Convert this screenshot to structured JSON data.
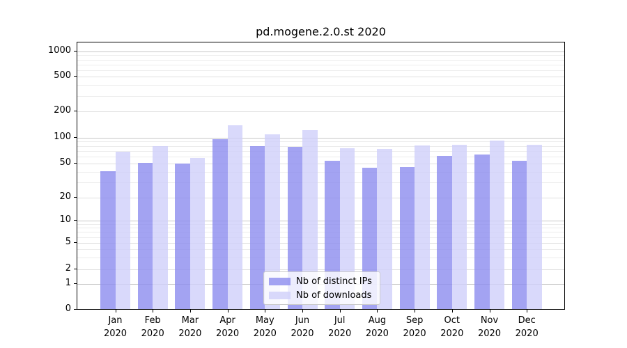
{
  "chart_data": {
    "type": "bar",
    "title": "pd.mogene.2.0.st 2020",
    "categories": [
      "Jan",
      "Feb",
      "Mar",
      "Apr",
      "May",
      "Jun",
      "Jul",
      "Aug",
      "Sep",
      "Oct",
      "Nov",
      "Dec"
    ],
    "x_tick_second_line": "2020",
    "series": [
      {
        "name": "Nb of distinct IPs",
        "color": "#8c8cef",
        "alpha": 0.8,
        "values": [
          40,
          50,
          49,
          94,
          78,
          77,
          53,
          44,
          45,
          60,
          62,
          53
        ]
      },
      {
        "name": "Nb of downloads",
        "color": "#d0d0fa",
        "alpha": 0.8,
        "values": [
          67,
          78,
          57,
          136,
          107,
          118,
          74,
          72,
          79,
          81,
          90,
          81
        ]
      }
    ],
    "y_axis": {
      "scale": "log-like",
      "ticks": [
        1000,
        500,
        200,
        100,
        50,
        20,
        10,
        5,
        2,
        1,
        0
      ]
    },
    "grid": "horizontal",
    "legend_position": "lower center"
  }
}
